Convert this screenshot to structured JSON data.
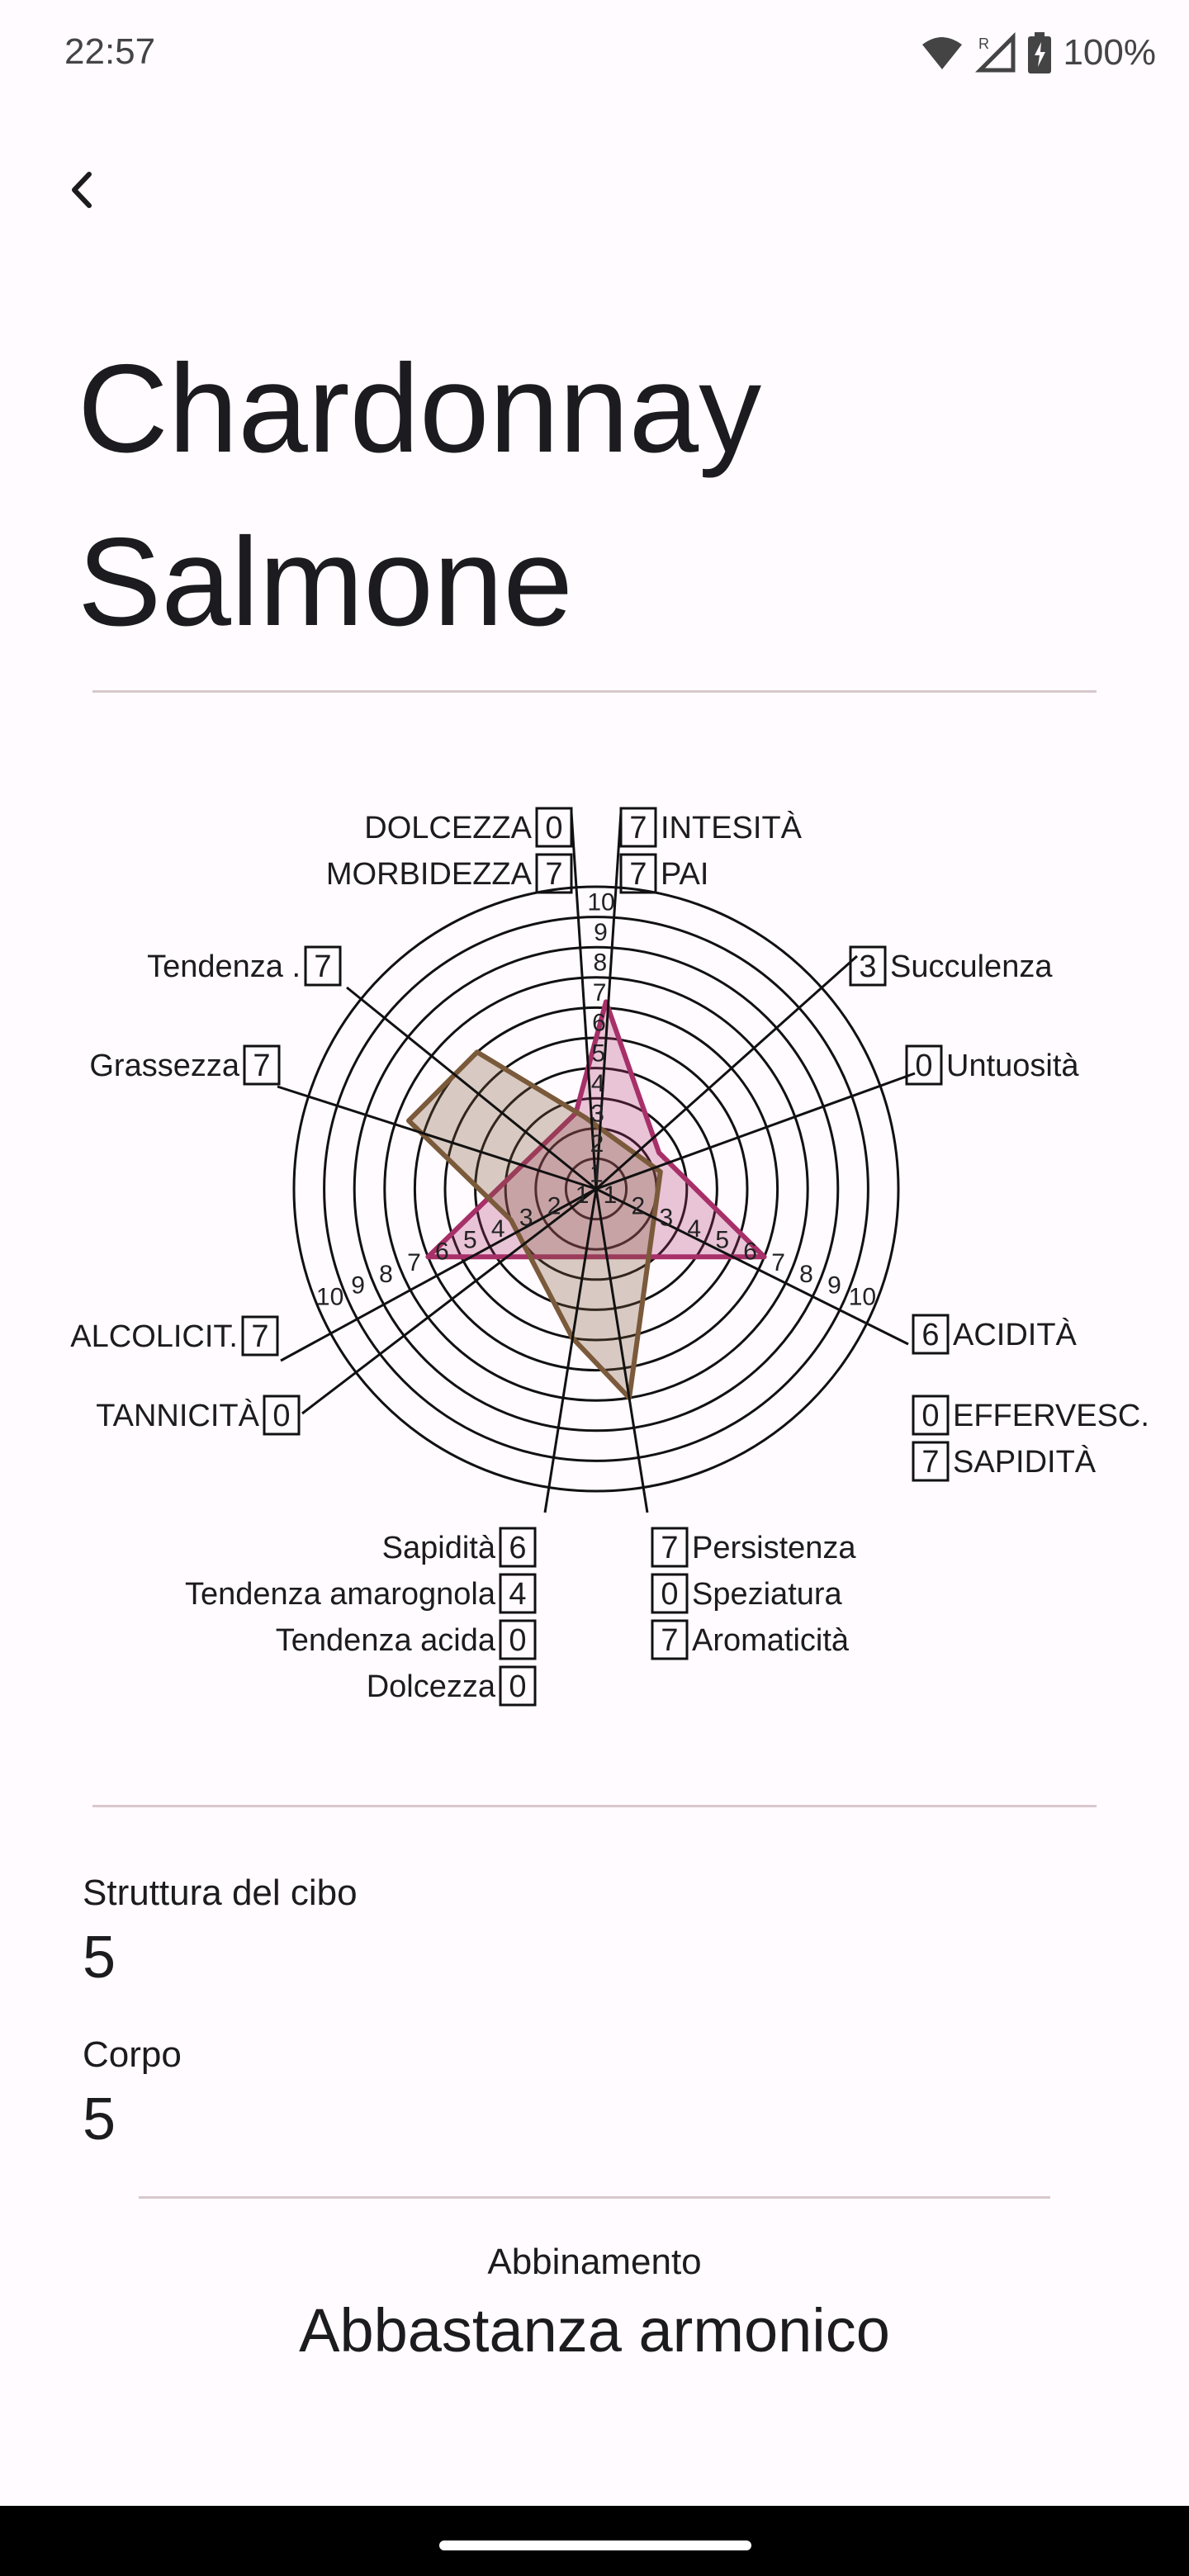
{
  "status_bar": {
    "time": "22:57",
    "battery": "100%",
    "icons": [
      "wifi-icon",
      "signal-icon",
      "battery-icon"
    ]
  },
  "header": {
    "back_icon": "chevron-left-icon",
    "title": "Chardonnay\nSalmone"
  },
  "chart_data": {
    "type": "radar",
    "r_max": 10,
    "rings": [
      1,
      2,
      3,
      4,
      5,
      6,
      7,
      8,
      9,
      10
    ],
    "axes": [
      {
        "key": "intensita",
        "label": "INTESITÀ",
        "angle": 87
      },
      {
        "key": "pai",
        "label": "PAI",
        "angle": 87
      },
      {
        "key": "succulenza",
        "label": "Succulenza",
        "angle": 45
      },
      {
        "key": "untuosita",
        "label": "Untuosità",
        "angle": 18
      },
      {
        "key": "acidita",
        "label": "ACIDITÀ",
        "angle": -22
      },
      {
        "key": "effervesc",
        "label": "EFFERVESC.",
        "angle": -22
      },
      {
        "key": "sapidita_vino",
        "label": "SAPIDITÀ",
        "angle": -22
      },
      {
        "key": "persistenza",
        "label": "Persistenza",
        "angle": -81
      },
      {
        "key": "speziatura",
        "label": "Speziatura",
        "angle": -81
      },
      {
        "key": "aromaticita",
        "label": "Aromaticità",
        "angle": -81
      },
      {
        "key": "sapidita_cibo",
        "label": "Sapidità",
        "angle": -99
      },
      {
        "key": "tend_amarognola",
        "label": "Tendenza amarognola",
        "angle": -99
      },
      {
        "key": "tend_acida",
        "label": "Tendenza acida",
        "angle": -99
      },
      {
        "key": "dolcezza_cibo",
        "label": "Dolcezza",
        "angle": -99
      },
      {
        "key": "tannicita",
        "label": "TANNICITÀ",
        "angle": -145
      },
      {
        "key": "alcolicita",
        "label": "ALCOLICIT.",
        "angle": -158
      },
      {
        "key": "grassezza",
        "label": "Grassezza",
        "angle": 162
      },
      {
        "key": "tendenza",
        "label": "Tendenza .",
        "angle": 135
      },
      {
        "key": "morbidezza",
        "label": "MORBIDEZZA",
        "angle": 93
      },
      {
        "key": "dolcezza_vino",
        "label": "DOLCEZZA",
        "angle": 93
      }
    ],
    "series": [
      {
        "color": "#a73069",
        "fill": "rgba(175, 50, 110, 0.28)",
        "points": [
          {
            "angle": 87,
            "value": 6.2
          },
          {
            "angle": 30,
            "value": 2.4
          },
          {
            "angle": -22,
            "value": 6.0
          },
          {
            "angle": -158,
            "value": 6.0
          },
          {
            "angle": 105,
            "value": 2.6
          }
        ]
      },
      {
        "color": "#7a5a3a",
        "fill": "rgba(125, 90, 55, 0.30)",
        "points": [
          {
            "angle": 99,
            "value": 2.4
          },
          {
            "angle": 15,
            "value": 2.2
          },
          {
            "angle": -81,
            "value": 7.0
          },
          {
            "angle": -99,
            "value": 5.0
          },
          {
            "angle": -160,
            "value": 3.0
          },
          {
            "angle": 160,
            "value": 6.6
          },
          {
            "angle": 131,
            "value": 6.0
          }
        ]
      }
    ],
    "legend": {
      "top_right": [
        {
          "value": "7",
          "label": "INTESITÀ"
        },
        {
          "value": "7",
          "label": "PAI"
        }
      ],
      "top_left": [
        {
          "value": "0",
          "label": "DOLCEZZA"
        },
        {
          "value": "7",
          "label": "MORBIDEZZA"
        }
      ],
      "succulenza": {
        "value": "3",
        "label": "Succulenza"
      },
      "untuosita": {
        "value": "0",
        "label": "Untuosità"
      },
      "tendenza": {
        "value": "7",
        "label": "Tendenza ."
      },
      "grassezza": {
        "value": "7",
        "label": "Grassezza"
      },
      "alcolicita": {
        "value": "7",
        "label": "ALCOLICIT."
      },
      "tannicita": {
        "value": "0",
        "label": "TANNICITÀ"
      },
      "right_group": [
        {
          "value": "6",
          "label": "ACIDITÀ"
        },
        {
          "value": "0",
          "label": "EFFERVESC."
        },
        {
          "value": "7",
          "label": "SAPIDITÀ"
        }
      ],
      "bottom_right": [
        {
          "value": "7",
          "label": "Persistenza"
        },
        {
          "value": "0",
          "label": "Speziatura"
        },
        {
          "value": "7",
          "label": "Aromaticità"
        }
      ],
      "bottom_left": [
        {
          "value": "6",
          "label": "Sapidità"
        },
        {
          "value": "4",
          "label": "Tendenza amarognola"
        },
        {
          "value": "0",
          "label": "Tendenza acida"
        },
        {
          "value": "0",
          "label": "Dolcezza"
        }
      ]
    }
  },
  "details": {
    "struttura_label": "Struttura del cibo",
    "struttura_value": "5",
    "corpo_label": "Corpo",
    "corpo_value": "5"
  },
  "pairing": {
    "label": "Abbinamento",
    "value": "Abbastanza armonico"
  }
}
